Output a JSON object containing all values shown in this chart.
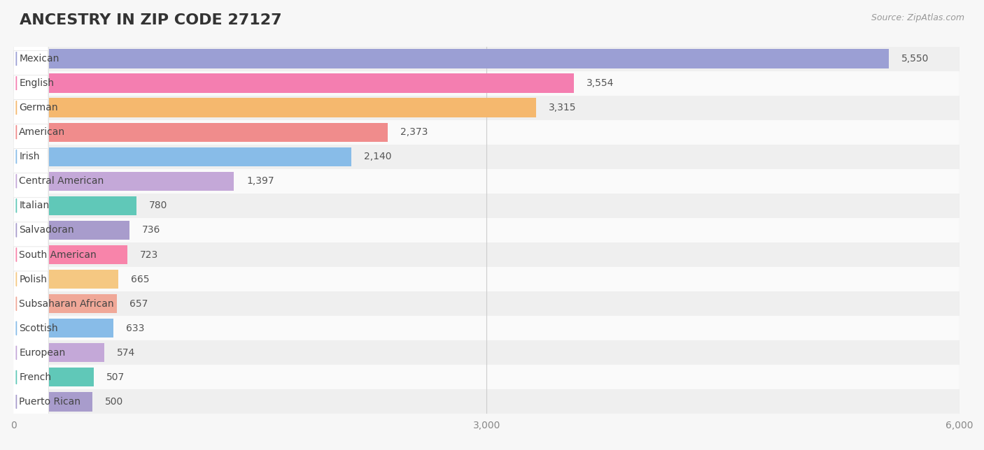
{
  "title": "ANCESTRY IN ZIP CODE 27127",
  "source": "Source: ZipAtlas.com",
  "categories": [
    "Mexican",
    "English",
    "German",
    "American",
    "Irish",
    "Central American",
    "Italian",
    "Salvadoran",
    "South American",
    "Polish",
    "Subsaharan African",
    "Scottish",
    "European",
    "French",
    "Puerto Rican"
  ],
  "values": [
    5550,
    3554,
    3315,
    2373,
    2140,
    1397,
    780,
    736,
    723,
    665,
    657,
    633,
    574,
    507,
    500
  ],
  "bar_colors": [
    "#9b9fd4",
    "#f47eb0",
    "#f5b86e",
    "#f08c8c",
    "#88bce8",
    "#c4a8d8",
    "#60c8b8",
    "#a89ccc",
    "#f884aa",
    "#f5c882",
    "#f0a898",
    "#88bce8",
    "#c4a8d8",
    "#60c8b8",
    "#a89ccc"
  ],
  "xlim": [
    0,
    6000
  ],
  "xticks": [
    0,
    3000,
    6000
  ],
  "xtick_labels": [
    "0",
    "3,000",
    "6,000"
  ],
  "background_color": "#f7f7f7",
  "row_bg_even": "#f0f0f0",
  "row_bg_odd": "#fafafa",
  "title_fontsize": 16,
  "label_fontsize": 10,
  "value_fontsize": 10
}
